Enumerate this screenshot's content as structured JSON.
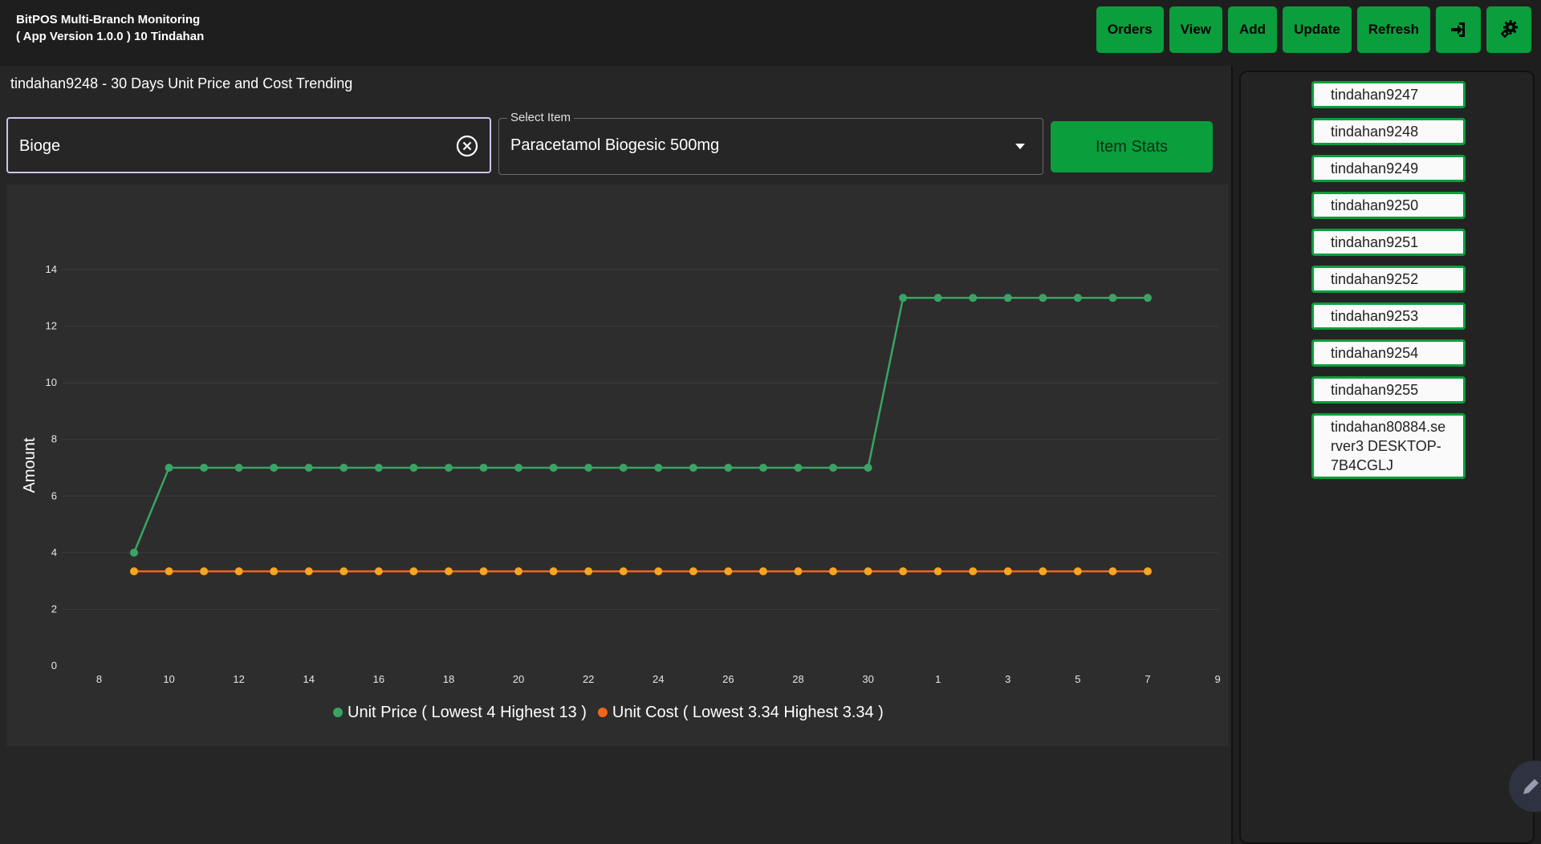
{
  "header": {
    "title_line1": "BitPOS Multi-Branch Monitoring",
    "title_line2": "( App Version 1.0.0 ) 10 Tindahan",
    "buttons": [
      "Orders",
      "View",
      "Add",
      "Update",
      "Refresh"
    ],
    "icon_buttons": [
      "logout-icon",
      "settings-icon"
    ]
  },
  "main": {
    "panel_title": "tindahan9248 - 30 Days Unit Price and Cost Trending",
    "search": {
      "value": "Bioge",
      "placeholder": ""
    },
    "select": {
      "label": "Select Item",
      "value": "Paracetamol Biogesic 500mg"
    },
    "item_stats_label": "Item Stats"
  },
  "branches": [
    "tindahan9247",
    "tindahan9248",
    "tindahan9249",
    "tindahan9250",
    "tindahan9251",
    "tindahan9252",
    "tindahan9253",
    "tindahan9254",
    "tindahan9255",
    "tindahan80884.server3 DESKTOP-7B4CGLJ"
  ],
  "colors": {
    "accent_green": "#0a9e3c",
    "price_line": "#3aa465",
    "cost_line": "#f0651d",
    "cost_marker": "#f5a623"
  },
  "chart_data": {
    "type": "line",
    "ylabel": "Amount",
    "xlabel": "",
    "ylim": [
      0,
      14
    ],
    "yticks": [
      0,
      2,
      4,
      6,
      8,
      10,
      12,
      14
    ],
    "x_tick_labels": [
      "8",
      "10",
      "12",
      "14",
      "16",
      "18",
      "20",
      "22",
      "24",
      "26",
      "28",
      "30",
      "1",
      "3",
      "5",
      "7",
      "9"
    ],
    "x": [
      "9",
      "10",
      "11",
      "12",
      "13",
      "14",
      "15",
      "16",
      "17",
      "18",
      "19",
      "20",
      "21",
      "22",
      "23",
      "24",
      "25",
      "26",
      "27",
      "28",
      "29",
      "30",
      "1",
      "2",
      "3",
      "4",
      "5",
      "6",
      "7",
      "8"
    ],
    "series": [
      {
        "name": "Unit Price ( Lowest 4 Highest 13 )",
        "color": "#3aa465",
        "values": [
          4,
          7,
          7,
          7,
          7,
          7,
          7,
          7,
          7,
          7,
          7,
          7,
          7,
          7,
          7,
          7,
          7,
          7,
          7,
          7,
          7,
          7,
          13,
          13,
          13,
          13,
          13,
          13,
          13,
          13
        ]
      },
      {
        "name": "Unit Cost ( Lowest 3.34 Highest 3.34 )",
        "color": "#f0651d",
        "values": [
          3.34,
          3.34,
          3.34,
          3.34,
          3.34,
          3.34,
          3.34,
          3.34,
          3.34,
          3.34,
          3.34,
          3.34,
          3.34,
          3.34,
          3.34,
          3.34,
          3.34,
          3.34,
          3.34,
          3.34,
          3.34,
          3.34,
          3.34,
          3.34,
          3.34,
          3.34,
          3.34,
          3.34,
          3.34,
          3.34
        ]
      }
    ],
    "grid": true,
    "legend_position": "bottom-center"
  }
}
